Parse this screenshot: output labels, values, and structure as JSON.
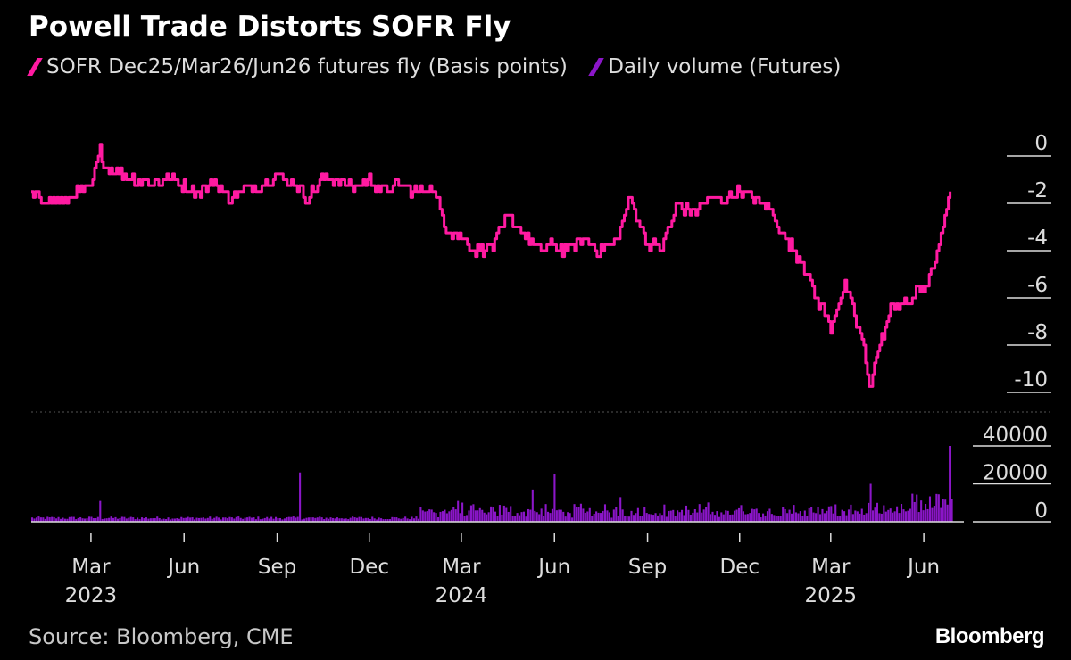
{
  "title": "Powell Trade Distorts SOFR Fly",
  "source": "Source: Bloomberg, CME",
  "brand": "Bloomberg",
  "colors": {
    "fly": "#ff1aa1",
    "volume": "#8b16c8",
    "background": "#000000",
    "axis": "#dddddd"
  },
  "legend": [
    {
      "label": "SOFR Dec25/Mar26/Jun26 futures fly (Basis points)",
      "color": "#ff1aa1"
    },
    {
      "label": "Daily volume (Futures)",
      "color": "#8b16c8"
    }
  ],
  "chart_data": [
    {
      "type": "line",
      "name": "SOFR Dec25/Mar26/Jun26 futures fly (Basis points)",
      "ylabel": "Basis points",
      "ylim": [
        -11,
        0.5
      ],
      "yticks": [
        0,
        -2,
        -4,
        -6,
        -8,
        -10
      ],
      "ytick_labels": [
        "0",
        "-2",
        "-4",
        "-6",
        "-8",
        "-10"
      ],
      "x_start": "2023-01-01",
      "x_end": "2025-06-30",
      "x": [
        "2023-01-01",
        "2023-01-15",
        "2023-02-01",
        "2023-02-15",
        "2023-03-01",
        "2023-03-10",
        "2023-03-15",
        "2023-04-01",
        "2023-04-15",
        "2023-05-01",
        "2023-05-15",
        "2023-06-01",
        "2023-06-15",
        "2023-07-01",
        "2023-07-15",
        "2023-08-01",
        "2023-08-15",
        "2023-09-01",
        "2023-09-15",
        "2023-10-01",
        "2023-10-15",
        "2023-11-01",
        "2023-11-15",
        "2023-12-01",
        "2023-12-15",
        "2024-01-01",
        "2024-01-15",
        "2024-02-01",
        "2024-02-15",
        "2024-03-01",
        "2024-03-15",
        "2024-04-01",
        "2024-04-15",
        "2024-05-01",
        "2024-05-15",
        "2024-06-01",
        "2024-06-15",
        "2024-07-01",
        "2024-07-15",
        "2024-08-01",
        "2024-08-15",
        "2024-09-01",
        "2024-09-15",
        "2024-10-01",
        "2024-10-15",
        "2024-11-01",
        "2024-11-15",
        "2024-12-01",
        "2024-12-15",
        "2025-01-01",
        "2025-01-15",
        "2025-02-01",
        "2025-02-15",
        "2025-03-01",
        "2025-03-15",
        "2025-04-01",
        "2025-04-08",
        "2025-04-15",
        "2025-04-22",
        "2025-05-01",
        "2025-05-15",
        "2025-06-01",
        "2025-06-10",
        "2025-06-20",
        "2025-06-27"
      ],
      "values": [
        -1.7,
        -1.8,
        -2.0,
        -1.5,
        -1.4,
        0.2,
        -0.5,
        -0.8,
        -1.0,
        -1.2,
        -0.9,
        -1.3,
        -1.5,
        -1.1,
        -1.8,
        -1.4,
        -1.3,
        -0.8,
        -1.1,
        -1.8,
        -1.0,
        -1.0,
        -1.3,
        -1.0,
        -1.5,
        -1.2,
        -1.5,
        -1.3,
        -3.0,
        -3.5,
        -4.0,
        -3.8,
        -2.6,
        -3.2,
        -4.0,
        -3.8,
        -4.0,
        -3.5,
        -4.0,
        -3.6,
        -1.8,
        -3.8,
        -3.8,
        -2.0,
        -2.4,
        -1.8,
        -1.8,
        -1.5,
        -1.8,
        -2.3,
        -3.5,
        -4.5,
        -6.0,
        -7.2,
        -5.5,
        -7.8,
        -9.8,
        -8.5,
        -7.5,
        -6.3,
        -6.2,
        -5.5,
        -4.8,
        -3.0,
        -1.5
      ]
    },
    {
      "type": "bar",
      "name": "Daily volume (Futures)",
      "ylabel": "Futures",
      "ylim": [
        0,
        45000
      ],
      "yticks": [
        40000,
        20000,
        0
      ],
      "ytick_labels": [
        "40000",
        "20000",
        "0"
      ],
      "baseline": 2000,
      "spikes": [
        {
          "date": "2023-03-10",
          "value": 11000
        },
        {
          "date": "2023-09-22",
          "value": 26000
        },
        {
          "date": "2024-01-20",
          "value": 8000
        },
        {
          "date": "2024-02-25",
          "value": 11000
        },
        {
          "date": "2024-05-10",
          "value": 17000
        },
        {
          "date": "2024-06-01",
          "value": 25000
        },
        {
          "date": "2024-08-05",
          "value": 13000
        },
        {
          "date": "2025-03-20",
          "value": 9000
        },
        {
          "date": "2025-04-08",
          "value": 20000
        },
        {
          "date": "2025-06-20",
          "value": 12000
        },
        {
          "date": "2025-06-26",
          "value": 40000
        }
      ]
    }
  ],
  "x_axis": {
    "ticks": [
      {
        "date": "2023-03-01",
        "label": "Mar",
        "year": "2023"
      },
      {
        "date": "2023-06-01",
        "label": "Jun",
        "year": ""
      },
      {
        "date": "2023-09-01",
        "label": "Sep",
        "year": ""
      },
      {
        "date": "2023-12-01",
        "label": "Dec",
        "year": ""
      },
      {
        "date": "2024-03-01",
        "label": "Mar",
        "year": "2024"
      },
      {
        "date": "2024-06-01",
        "label": "Jun",
        "year": ""
      },
      {
        "date": "2024-09-01",
        "label": "Sep",
        "year": ""
      },
      {
        "date": "2024-12-01",
        "label": "Dec",
        "year": ""
      },
      {
        "date": "2025-03-01",
        "label": "Mar",
        "year": "2025"
      },
      {
        "date": "2025-06-01",
        "label": "Jun",
        "year": ""
      }
    ]
  }
}
